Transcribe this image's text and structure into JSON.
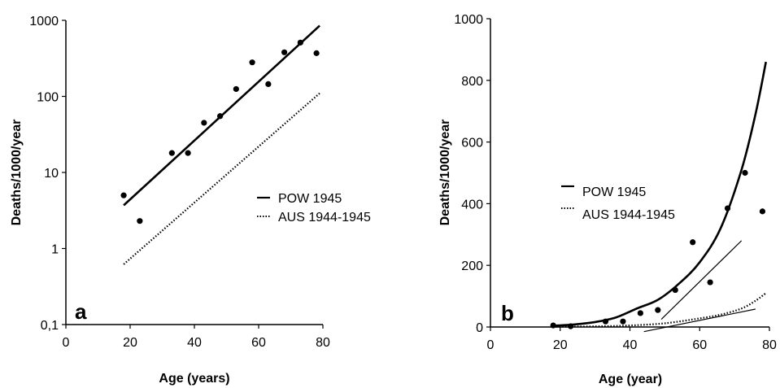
{
  "chart_data": [
    {
      "type": "scatter",
      "panel_label": "a",
      "xlabel": "Age (years)",
      "ylabel": "Deaths/1000/year",
      "xlim": [
        0,
        80
      ],
      "ylim": [
        0.1,
        1000
      ],
      "yscale": "log",
      "grid": false,
      "legend_position": "right",
      "x_ticks": [
        0,
        20,
        40,
        60,
        80
      ],
      "x_tick_labels": [
        "0",
        "20",
        "40",
        "60",
        "80"
      ],
      "y_ticks": [
        0.1,
        1,
        10,
        100,
        1000
      ],
      "y_tick_labels": [
        "0,1",
        "1",
        "10",
        "100",
        "1000"
      ],
      "series": [
        {
          "name": "POW 1945",
          "style": "solid",
          "kind": "fit_line",
          "x": [
            18,
            79
          ],
          "y": [
            3.7,
            850
          ]
        },
        {
          "name": "AUS 1944-1945",
          "style": "dotted",
          "kind": "fit_line",
          "x": [
            18,
            79
          ],
          "y": [
            0.62,
            110
          ]
        },
        {
          "name": "observed",
          "kind": "points",
          "x": [
            18,
            23,
            33,
            38,
            43,
            48,
            53,
            58,
            63,
            68,
            73,
            78
          ],
          "y": [
            5,
            2.3,
            18,
            18,
            45,
            55,
            125,
            280,
            145,
            380,
            510,
            370
          ]
        }
      ]
    },
    {
      "type": "scatter",
      "panel_label": "b",
      "xlabel": "Age (year)",
      "ylabel": "Deaths/1000/year",
      "xlim": [
        0,
        80
      ],
      "ylim": [
        0,
        1000
      ],
      "yscale": "linear",
      "grid": false,
      "legend_position": "right",
      "x_ticks": [
        0,
        20,
        40,
        60,
        80
      ],
      "x_tick_labels": [
        "0",
        "20",
        "40",
        "60",
        "80"
      ],
      "y_ticks": [
        0,
        200,
        400,
        600,
        800,
        1000
      ],
      "y_tick_labels": [
        "0",
        "200",
        "400",
        "600",
        "800",
        "1000"
      ],
      "series": [
        {
          "name": "POW 1945",
          "style": "solid",
          "kind": "fit_curve",
          "x": [
            18,
            24,
            30,
            36,
            42,
            48,
            54,
            60,
            66,
            72,
            76,
            79
          ],
          "y": [
            4,
            8,
            16,
            31,
            60,
            88,
            140,
            210,
            320,
            510,
            690,
            860
          ]
        },
        {
          "name": "AUS 1944-1945",
          "style": "dotted",
          "kind": "fit_curve",
          "x": [
            18,
            30,
            40,
            50,
            60,
            66,
            72,
            76,
            79
          ],
          "y": [
            0.6,
            2,
            5,
            12,
            28,
            40,
            60,
            85,
            110
          ]
        },
        {
          "name": "tangent POW",
          "style": "thin",
          "kind": "tangent",
          "x": [
            49,
            72
          ],
          "y": [
            25,
            280
          ]
        },
        {
          "name": "tangent AUS",
          "style": "thin",
          "kind": "tangent",
          "x": [
            44,
            76
          ],
          "y": [
            -15,
            58
          ]
        },
        {
          "name": "observed",
          "kind": "points",
          "x": [
            18,
            23,
            33,
            38,
            43,
            48,
            53,
            58,
            63,
            68,
            73,
            78
          ],
          "y": [
            5,
            2.3,
            18,
            18,
            45,
            55,
            120,
            275,
            145,
            385,
            500,
            375
          ]
        }
      ]
    }
  ]
}
